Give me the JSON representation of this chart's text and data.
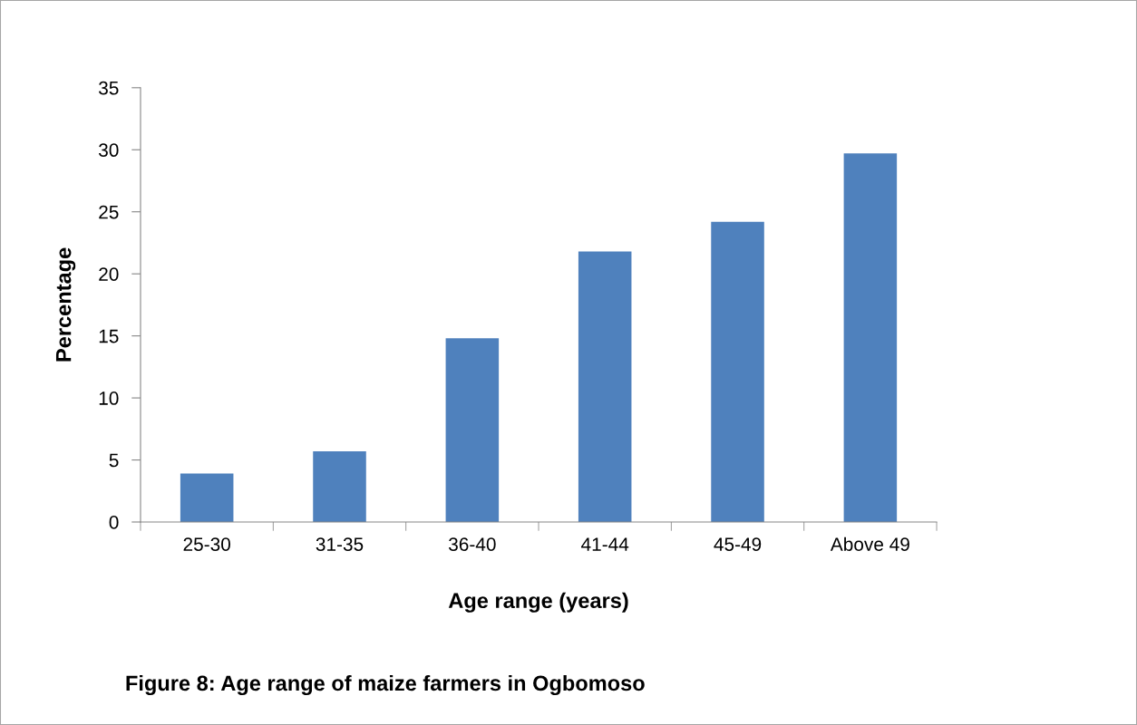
{
  "chart_data": {
    "type": "bar",
    "xlabel": "Age range (years)",
    "ylabel": "Percentage",
    "categories": [
      "25-30",
      "31-35",
      "36-40",
      "41-44",
      "45-49",
      "Above 49"
    ],
    "values": [
      3.9,
      5.7,
      14.8,
      21.8,
      24.2,
      29.7
    ],
    "color": "#4f81bd",
    "ylim": [
      0,
      35
    ],
    "yticks": [
      0,
      5,
      10,
      15,
      20,
      25,
      30,
      35
    ],
    "grid": false,
    "annotations": [
      "Figure 8: Age range of maize farmers in Ogbomoso"
    ]
  }
}
